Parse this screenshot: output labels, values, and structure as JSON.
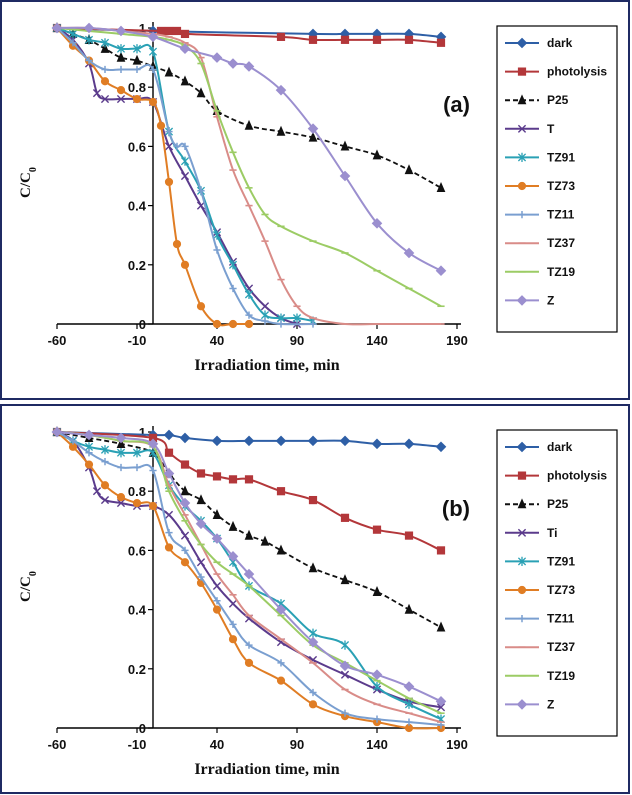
{
  "chart_data": [
    {
      "type": "line",
      "panel_label": "(a)",
      "xlabel": "Irradiation time, min",
      "ylabel": "C/C",
      "ylabel_sub": "0",
      "xlim": [
        -60,
        190
      ],
      "ylim": [
        0,
        1
      ],
      "xticks": [
        -60,
        -10,
        40,
        90,
        140,
        190
      ],
      "yticks": [
        0,
        0.2,
        0.4,
        0.6,
        0.8,
        1
      ],
      "ytick_labels": [
        "0",
        "0.2",
        "0.4",
        "0.6",
        "0.8",
        "1"
      ],
      "grid": false,
      "legend_position": "right",
      "series": [
        {
          "name": "dark",
          "color": "#2e5fa6",
          "marker": "diamond",
          "dash": "solid",
          "x": [
            -60,
            0,
            100,
            120,
            140,
            160,
            180
          ],
          "y": [
            1.0,
            0.99,
            0.98,
            0.98,
            0.98,
            0.98,
            0.97
          ]
        },
        {
          "name": "photolysis",
          "color": "#b3373a",
          "marker": "square",
          "dash": "solid",
          "x": [
            -60,
            5,
            10,
            15,
            20,
            80,
            100,
            120,
            140,
            160,
            180
          ],
          "y": [
            1.0,
            0.99,
            0.99,
            0.99,
            0.98,
            0.97,
            0.96,
            0.96,
            0.96,
            0.96,
            0.95
          ]
        },
        {
          "name": "P25",
          "color": "#111111",
          "marker": "triangle",
          "dash": "dashed",
          "x": [
            -60,
            -50,
            -40,
            -30,
            -20,
            -10,
            0,
            10,
            20,
            30,
            40,
            60,
            80,
            100,
            120,
            140,
            160,
            180
          ],
          "y": [
            1.0,
            0.98,
            0.96,
            0.93,
            0.9,
            0.89,
            0.87,
            0.85,
            0.82,
            0.78,
            0.72,
            0.67,
            0.65,
            0.63,
            0.6,
            0.57,
            0.52,
            0.46
          ]
        },
        {
          "name": "T",
          "color": "#5b3b8c",
          "marker": "x",
          "dash": "solid",
          "x": [
            -60,
            -50,
            -40,
            -35,
            -30,
            -20,
            -10,
            0,
            10,
            20,
            30,
            40,
            50,
            60,
            70,
            80,
            90
          ],
          "y": [
            1.0,
            0.96,
            0.88,
            0.78,
            0.76,
            0.76,
            0.76,
            0.75,
            0.6,
            0.5,
            0.4,
            0.31,
            0.21,
            0.12,
            0.06,
            0.02,
            0.0
          ]
        },
        {
          "name": "TZ91",
          "color": "#2aa1b5",
          "marker": "asterisk",
          "dash": "solid",
          "x": [
            -60,
            -50,
            -40,
            -30,
            -20,
            -10,
            0,
            10,
            20,
            30,
            40,
            50,
            60,
            70,
            80,
            90,
            100
          ],
          "y": [
            1.0,
            0.98,
            0.96,
            0.95,
            0.93,
            0.93,
            0.92,
            0.65,
            0.55,
            0.45,
            0.3,
            0.2,
            0.1,
            0.03,
            0.02,
            0.02,
            0.01
          ]
        },
        {
          "name": "TZ73",
          "color": "#e07d24",
          "marker": "circle",
          "dash": "solid",
          "x": [
            -60,
            -50,
            -40,
            -30,
            -20,
            -10,
            0,
            5,
            10,
            15,
            20,
            30,
            40,
            50,
            60
          ],
          "y": [
            1.0,
            0.94,
            0.89,
            0.82,
            0.79,
            0.76,
            0.75,
            0.67,
            0.48,
            0.27,
            0.2,
            0.06,
            0.0,
            0.0,
            0.0
          ]
        },
        {
          "name": "TZ11",
          "color": "#7a9fd0",
          "marker": "plus",
          "dash": "solid",
          "x": [
            -60,
            -50,
            -40,
            -30,
            -20,
            -10,
            0,
            10,
            15,
            20,
            30,
            40,
            50,
            60,
            70,
            80,
            100
          ],
          "y": [
            1.0,
            0.95,
            0.89,
            0.86,
            0.86,
            0.86,
            0.86,
            0.65,
            0.6,
            0.6,
            0.45,
            0.25,
            0.12,
            0.03,
            0.01,
            0.0,
            0.0
          ]
        },
        {
          "name": "TZ37",
          "color": "#d98c88",
          "marker": "dash",
          "dash": "solid",
          "x": [
            -60,
            -40,
            -20,
            0,
            10,
            20,
            30,
            40,
            50,
            60,
            70,
            80,
            90,
            100,
            120,
            140,
            160,
            180
          ],
          "y": [
            1.0,
            1.0,
            0.99,
            0.98,
            0.97,
            0.95,
            0.9,
            0.7,
            0.52,
            0.4,
            0.28,
            0.15,
            0.06,
            0.02,
            0.0,
            0.0,
            0.0,
            0.0
          ]
        },
        {
          "name": "TZ19",
          "color": "#9ccc65",
          "marker": "dash",
          "dash": "solid",
          "x": [
            -60,
            -40,
            -20,
            0,
            10,
            20,
            30,
            40,
            50,
            60,
            70,
            80,
            100,
            120,
            140,
            160,
            180
          ],
          "y": [
            1.0,
            0.99,
            0.98,
            0.97,
            0.96,
            0.94,
            0.88,
            0.72,
            0.58,
            0.46,
            0.37,
            0.33,
            0.28,
            0.24,
            0.18,
            0.12,
            0.06
          ]
        },
        {
          "name": "Z",
          "color": "#9b8fcf",
          "marker": "diamond",
          "dash": "solid",
          "x": [
            -60,
            -40,
            -20,
            0,
            20,
            40,
            50,
            60,
            80,
            100,
            120,
            140,
            160,
            180
          ],
          "y": [
            1.0,
            1.0,
            0.99,
            0.97,
            0.93,
            0.9,
            0.88,
            0.87,
            0.79,
            0.66,
            0.5,
            0.34,
            0.24,
            0.18
          ]
        }
      ]
    },
    {
      "type": "line",
      "panel_label": "(b)",
      "xlabel": "Irradiation time, min",
      "ylabel": "C/C",
      "ylabel_sub": "0",
      "xlim": [
        -60,
        190
      ],
      "ylim": [
        0,
        1
      ],
      "xticks": [
        -60,
        -10,
        40,
        90,
        140,
        190
      ],
      "yticks": [
        0,
        0.2,
        0.4,
        0.6,
        0.8,
        1
      ],
      "ytick_labels": [
        "0",
        "0.2",
        "0.4",
        "0.6",
        "0.8",
        "1"
      ],
      "grid": false,
      "legend_position": "right",
      "series": [
        {
          "name": "dark",
          "color": "#2e5fa6",
          "marker": "diamond",
          "dash": "solid",
          "x": [
            -60,
            0,
            10,
            20,
            40,
            60,
            80,
            100,
            120,
            140,
            160,
            180
          ],
          "y": [
            1.0,
            0.99,
            0.99,
            0.98,
            0.97,
            0.97,
            0.97,
            0.97,
            0.97,
            0.96,
            0.96,
            0.95
          ]
        },
        {
          "name": "photolysis",
          "color": "#b3373a",
          "marker": "square",
          "dash": "solid",
          "x": [
            -60,
            0,
            10,
            20,
            30,
            40,
            50,
            60,
            80,
            100,
            120,
            140,
            160,
            180
          ],
          "y": [
            1.0,
            0.98,
            0.93,
            0.89,
            0.86,
            0.85,
            0.84,
            0.84,
            0.8,
            0.77,
            0.71,
            0.67,
            0.65,
            0.6
          ]
        },
        {
          "name": "P25",
          "color": "#111111",
          "marker": "triangle",
          "dash": "dashed",
          "x": [
            -60,
            -40,
            -20,
            0,
            10,
            20,
            30,
            40,
            50,
            60,
            70,
            80,
            100,
            120,
            140,
            160,
            180
          ],
          "y": [
            1.0,
            0.98,
            0.96,
            0.93,
            0.86,
            0.8,
            0.77,
            0.72,
            0.68,
            0.65,
            0.63,
            0.6,
            0.54,
            0.5,
            0.46,
            0.4,
            0.34
          ]
        },
        {
          "name": "Ti",
          "color": "#5b3b8c",
          "marker": "x",
          "dash": "solid",
          "x": [
            -60,
            -50,
            -40,
            -35,
            -30,
            -20,
            -10,
            0,
            10,
            20,
            30,
            40,
            50,
            60,
            80,
            100,
            120,
            140,
            160,
            180
          ],
          "y": [
            1.0,
            0.97,
            0.88,
            0.8,
            0.77,
            0.76,
            0.75,
            0.75,
            0.72,
            0.65,
            0.56,
            0.48,
            0.42,
            0.37,
            0.29,
            0.23,
            0.18,
            0.13,
            0.09,
            0.07
          ]
        },
        {
          "name": "TZ91",
          "color": "#2aa1b5",
          "marker": "asterisk",
          "dash": "solid",
          "x": [
            -60,
            -50,
            -40,
            -30,
            -20,
            -10,
            0,
            10,
            20,
            30,
            40,
            50,
            60,
            80,
            100,
            120,
            140,
            160,
            180
          ],
          "y": [
            1.0,
            0.97,
            0.95,
            0.94,
            0.93,
            0.93,
            0.93,
            0.82,
            0.75,
            0.7,
            0.64,
            0.56,
            0.48,
            0.42,
            0.32,
            0.28,
            0.14,
            0.08,
            0.03
          ]
        },
        {
          "name": "TZ73",
          "color": "#e07d24",
          "marker": "circle",
          "dash": "solid",
          "x": [
            -60,
            -50,
            -40,
            -30,
            -20,
            -10,
            0,
            10,
            20,
            30,
            40,
            50,
            60,
            80,
            100,
            120,
            140,
            160,
            180
          ],
          "y": [
            1.0,
            0.95,
            0.89,
            0.82,
            0.78,
            0.76,
            0.75,
            0.61,
            0.56,
            0.49,
            0.4,
            0.3,
            0.22,
            0.16,
            0.08,
            0.04,
            0.02,
            0.0,
            0.0
          ]
        },
        {
          "name": "TZ11",
          "color": "#7a9fd0",
          "marker": "plus",
          "dash": "solid",
          "x": [
            -60,
            -50,
            -40,
            -30,
            -20,
            -10,
            0,
            10,
            20,
            30,
            40,
            50,
            60,
            80,
            100,
            120,
            140,
            160,
            180
          ],
          "y": [
            1.0,
            0.97,
            0.93,
            0.9,
            0.88,
            0.88,
            0.87,
            0.66,
            0.6,
            0.51,
            0.43,
            0.35,
            0.28,
            0.22,
            0.12,
            0.05,
            0.03,
            0.02,
            0.01
          ]
        },
        {
          "name": "TZ37",
          "color": "#d98c88",
          "marker": "dash",
          "dash": "solid",
          "x": [
            -60,
            -40,
            -20,
            0,
            10,
            20,
            30,
            40,
            50,
            60,
            80,
            100,
            120,
            140,
            160,
            180
          ],
          "y": [
            1.0,
            0.99,
            0.97,
            0.95,
            0.82,
            0.72,
            0.62,
            0.52,
            0.45,
            0.38,
            0.3,
            0.22,
            0.13,
            0.08,
            0.05,
            0.02
          ]
        },
        {
          "name": "TZ19",
          "color": "#9ccc65",
          "marker": "dash",
          "dash": "solid",
          "x": [
            -60,
            -40,
            -20,
            0,
            10,
            20,
            30,
            40,
            50,
            60,
            80,
            100,
            120,
            140,
            160,
            180
          ],
          "y": [
            1.0,
            0.99,
            0.97,
            0.95,
            0.8,
            0.7,
            0.62,
            0.56,
            0.52,
            0.48,
            0.38,
            0.28,
            0.22,
            0.16,
            0.1,
            0.05
          ]
        },
        {
          "name": "Z",
          "color": "#9b8fcf",
          "marker": "diamond",
          "dash": "solid",
          "x": [
            -60,
            -40,
            -20,
            0,
            10,
            20,
            30,
            40,
            50,
            60,
            80,
            100,
            120,
            140,
            160,
            180
          ],
          "y": [
            1.0,
            0.99,
            0.98,
            0.96,
            0.86,
            0.76,
            0.69,
            0.64,
            0.58,
            0.52,
            0.4,
            0.29,
            0.21,
            0.18,
            0.14,
            0.09
          ]
        }
      ]
    }
  ]
}
